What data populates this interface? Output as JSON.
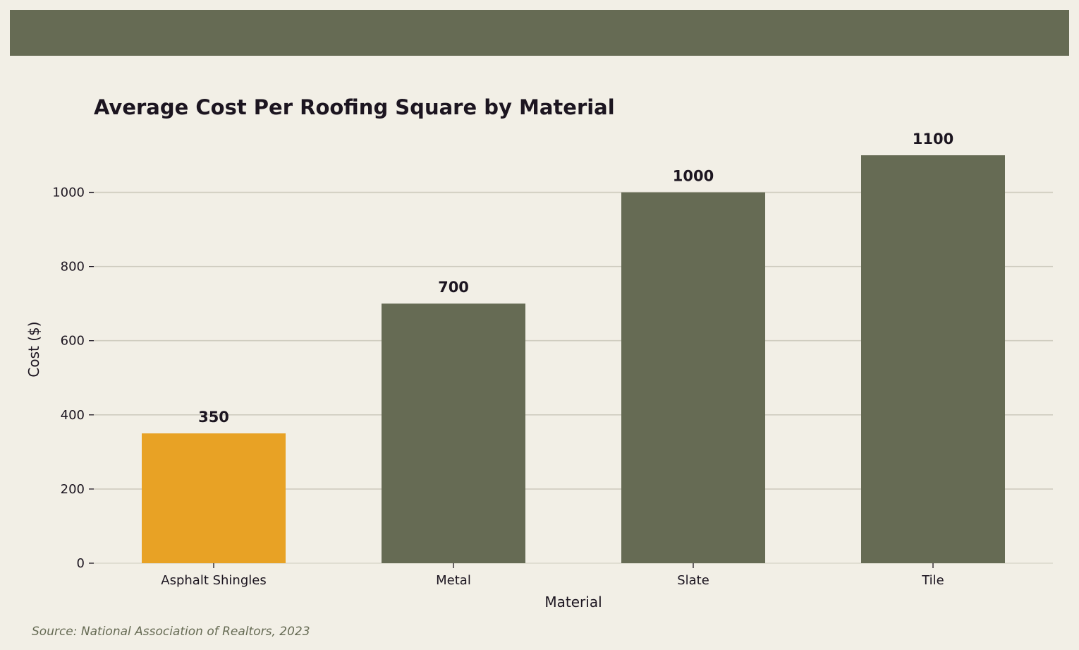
{
  "colors": {
    "background": "#f2efe6",
    "banner": "#666b54",
    "bar_default": "#666b54",
    "bar_highlight": "#e8a225",
    "grid": "#cfccbf",
    "text": "#1c1520",
    "source_text": "#666b54"
  },
  "source": "Source: National Association of Realtors, 2023",
  "chart_data": {
    "type": "bar",
    "title": "Average Cost Per Roofing Square by Material",
    "xlabel": "Material",
    "ylabel": "Cost ($)",
    "categories": [
      "Asphalt Shingles",
      "Metal",
      "Slate",
      "Tile"
    ],
    "values": [
      350,
      700,
      1000,
      1100
    ],
    "highlight": "Asphalt Shingles",
    "ylim": [
      0,
      1100
    ],
    "yticks": [
      0,
      200,
      400,
      600,
      800,
      1000
    ],
    "grid": "horizontal",
    "value_labels": true
  }
}
